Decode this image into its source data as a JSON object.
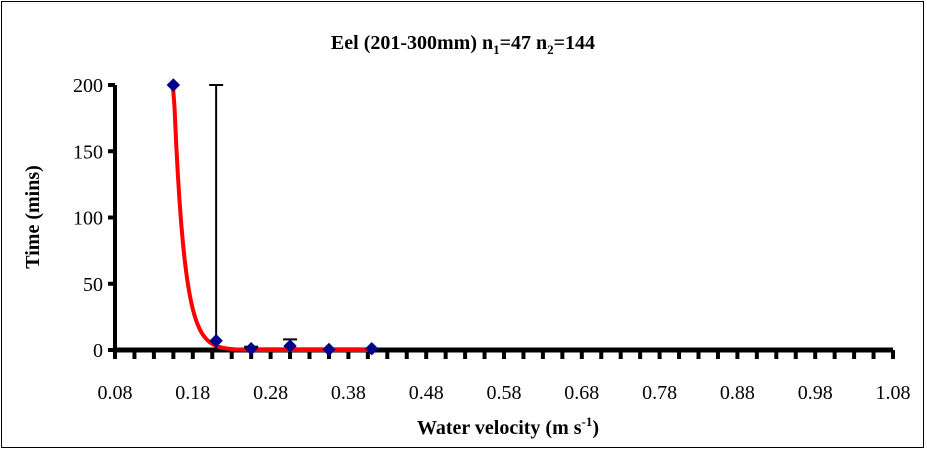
{
  "chart_data": {
    "type": "scatter",
    "title": {
      "prefix": "Eel (201-300mm) n",
      "sub1": "1",
      "mid": "=47 n",
      "sub2": "2",
      "suffix": "=144"
    },
    "xlabel": {
      "main": "Water velocity (m s",
      "sup": "-1",
      "close": ")"
    },
    "ylabel": "Time (mins)",
    "xlim": [
      0.08,
      1.08
    ],
    "ylim": [
      0,
      200
    ],
    "xticks": [
      "0.08",
      "0.18",
      "0.28",
      "0.38",
      "0.48",
      "0.58",
      "0.68",
      "0.78",
      "0.88",
      "0.98",
      "1.08"
    ],
    "yticks": [
      "0",
      "50",
      "100",
      "150",
      "200"
    ],
    "minor_xtick_step": 0.025,
    "grid": false,
    "points": [
      {
        "x": 0.155,
        "y": 200,
        "err_low": 0,
        "err_high": 0
      },
      {
        "x": 0.21,
        "y": 7,
        "err_low": 7,
        "err_high": 193
      },
      {
        "x": 0.255,
        "y": 1,
        "err_low": 0,
        "err_high": 1.5
      },
      {
        "x": 0.305,
        "y": 3,
        "err_low": 3,
        "err_high": 5
      },
      {
        "x": 0.355,
        "y": 0.4,
        "err_low": 0,
        "err_high": 0
      },
      {
        "x": 0.41,
        "y": 1,
        "err_low": 0,
        "err_high": 0
      }
    ],
    "fit": {
      "type": "exponential",
      "a": 26000000.0,
      "b": -75.8,
      "x_range": [
        0.15,
        0.41
      ],
      "color": "#ff0000"
    },
    "marker_color": "#00008b",
    "axis_color": "#000000"
  }
}
